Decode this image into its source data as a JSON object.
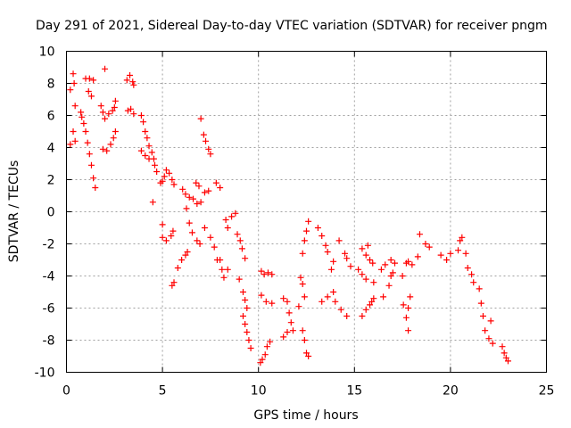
{
  "chart_data": {
    "type": "scatter",
    "title": "Day 291 of 2021, Sidereal Day-to-day VTEC variation (SDTVAR) for receiver pngm",
    "xlabel": "GPS time / hours",
    "ylabel": "SDTVAR / TECUs",
    "xlim": [
      0,
      25
    ],
    "ylim": [
      -10,
      10
    ],
    "xticks": [
      "0",
      "5",
      "10",
      "15",
      "20",
      "25"
    ],
    "yticks": [
      "-10",
      "-8",
      "-6",
      "-4",
      "-2",
      "0",
      "2",
      "4",
      "6",
      "8",
      "10"
    ],
    "grid": true,
    "marker": "plus",
    "color": "#ff0000",
    "series": [
      {
        "name": "SDTVAR",
        "points": [
          [
            0.2,
            7.6
          ],
          [
            0.2,
            4.2
          ],
          [
            0.35,
            8.6
          ],
          [
            0.4,
            8.0
          ],
          [
            0.45,
            6.6
          ],
          [
            0.35,
            5.0
          ],
          [
            0.45,
            4.4
          ],
          [
            0.75,
            6.2
          ],
          [
            0.8,
            5.9
          ],
          [
            0.9,
            5.5
          ],
          [
            1.0,
            5.0
          ],
          [
            1.1,
            4.3
          ],
          [
            1.2,
            3.6
          ],
          [
            1.3,
            2.9
          ],
          [
            1.4,
            2.1
          ],
          [
            1.5,
            1.5
          ],
          [
            1.0,
            8.3
          ],
          [
            1.2,
            8.3
          ],
          [
            1.4,
            8.2
          ],
          [
            1.15,
            7.5
          ],
          [
            1.3,
            7.2
          ],
          [
            1.8,
            6.6
          ],
          [
            1.9,
            6.2
          ],
          [
            2.0,
            5.8
          ],
          [
            2.0,
            8.9
          ],
          [
            2.2,
            6.1
          ],
          [
            2.4,
            6.3
          ],
          [
            2.5,
            6.5
          ],
          [
            2.55,
            6.9
          ],
          [
            1.9,
            3.9
          ],
          [
            2.1,
            3.8
          ],
          [
            2.3,
            4.2
          ],
          [
            2.45,
            4.6
          ],
          [
            2.55,
            5.0
          ],
          [
            3.15,
            8.2
          ],
          [
            3.3,
            8.5
          ],
          [
            3.45,
            8.1
          ],
          [
            3.5,
            7.9
          ],
          [
            3.2,
            6.3
          ],
          [
            3.35,
            6.4
          ],
          [
            3.5,
            6.1
          ],
          [
            3.9,
            6.0
          ],
          [
            4.0,
            5.6
          ],
          [
            4.1,
            5.0
          ],
          [
            4.2,
            4.6
          ],
          [
            4.3,
            4.1
          ],
          [
            4.45,
            3.7
          ],
          [
            4.55,
            3.3
          ],
          [
            4.6,
            2.9
          ],
          [
            4.7,
            2.5
          ],
          [
            4.9,
            1.8
          ],
          [
            3.9,
            3.8
          ],
          [
            4.1,
            3.5
          ],
          [
            4.3,
            3.3
          ],
          [
            4.5,
            0.6
          ],
          [
            5.0,
            1.9
          ],
          [
            5.1,
            2.2
          ],
          [
            5.2,
            2.6
          ],
          [
            5.35,
            2.4
          ],
          [
            5.5,
            2.0
          ],
          [
            5.6,
            1.7
          ],
          [
            5.0,
            -1.6
          ],
          [
            5.2,
            -1.8
          ],
          [
            5.45,
            -1.5
          ],
          [
            5.55,
            -1.2
          ],
          [
            5.0,
            -0.8
          ],
          [
            5.5,
            -4.6
          ],
          [
            5.6,
            -4.4
          ],
          [
            5.8,
            -3.5
          ],
          [
            6.0,
            -3.0
          ],
          [
            6.2,
            -2.7
          ],
          [
            6.3,
            -2.5
          ],
          [
            6.05,
            1.4
          ],
          [
            6.2,
            1.1
          ],
          [
            6.4,
            0.9
          ],
          [
            6.6,
            0.8
          ],
          [
            6.8,
            0.5
          ],
          [
            6.9,
            1.6
          ],
          [
            6.75,
            1.8
          ],
          [
            6.25,
            0.2
          ],
          [
            6.4,
            -0.7
          ],
          [
            6.55,
            -1.3
          ],
          [
            6.8,
            -1.8
          ],
          [
            6.95,
            -2.0
          ],
          [
            7.0,
            5.8
          ],
          [
            7.15,
            4.8
          ],
          [
            7.25,
            4.4
          ],
          [
            7.4,
            3.9
          ],
          [
            7.5,
            3.6
          ],
          [
            7.0,
            0.6
          ],
          [
            7.2,
            1.2
          ],
          [
            7.4,
            1.3
          ],
          [
            7.2,
            -1.0
          ],
          [
            7.5,
            -1.6
          ],
          [
            7.7,
            -2.2
          ],
          [
            7.85,
            -3.0
          ],
          [
            7.8,
            1.8
          ],
          [
            8.0,
            1.5
          ],
          [
            8.0,
            -3.0
          ],
          [
            8.1,
            -3.6
          ],
          [
            8.2,
            -4.1
          ],
          [
            8.4,
            -3.6
          ],
          [
            8.3,
            -0.5
          ],
          [
            8.6,
            -0.3
          ],
          [
            8.8,
            -0.1
          ],
          [
            8.4,
            -1.0
          ],
          [
            8.9,
            -1.4
          ],
          [
            9.05,
            -1.8
          ],
          [
            9.15,
            -2.3
          ],
          [
            9.3,
            -2.9
          ],
          [
            9.0,
            -4.2
          ],
          [
            9.2,
            -5.0
          ],
          [
            9.3,
            -5.5
          ],
          [
            9.4,
            -6.0
          ],
          [
            9.2,
            -6.5
          ],
          [
            9.3,
            -7.0
          ],
          [
            9.4,
            -7.5
          ],
          [
            9.5,
            -8.0
          ],
          [
            9.6,
            -8.5
          ],
          [
            10.1,
            -9.4
          ],
          [
            10.2,
            -9.2
          ],
          [
            10.35,
            -8.9
          ],
          [
            10.45,
            -8.4
          ],
          [
            10.6,
            -8.1
          ],
          [
            10.15,
            -3.7
          ],
          [
            10.3,
            -3.9
          ],
          [
            10.5,
            -3.8
          ],
          [
            10.7,
            -3.9
          ],
          [
            10.15,
            -5.2
          ],
          [
            10.4,
            -5.6
          ],
          [
            10.7,
            -5.7
          ],
          [
            11.3,
            -5.4
          ],
          [
            11.5,
            -5.6
          ],
          [
            11.6,
            -6.3
          ],
          [
            11.7,
            -6.9
          ],
          [
            11.8,
            -7.4
          ],
          [
            11.3,
            -7.8
          ],
          [
            11.5,
            -7.5
          ],
          [
            12.1,
            -5.9
          ],
          [
            12.3,
            -7.4
          ],
          [
            12.4,
            -8.0
          ],
          [
            12.5,
            -8.8
          ],
          [
            12.6,
            -9.0
          ],
          [
            12.3,
            -2.6
          ],
          [
            12.4,
            -1.8
          ],
          [
            12.5,
            -1.2
          ],
          [
            12.6,
            -0.6
          ],
          [
            12.2,
            -4.1
          ],
          [
            12.3,
            -4.5
          ],
          [
            12.4,
            -5.3
          ],
          [
            13.1,
            -1.0
          ],
          [
            13.3,
            -1.5
          ],
          [
            13.5,
            -2.1
          ],
          [
            13.6,
            -2.5
          ],
          [
            13.3,
            -5.6
          ],
          [
            13.6,
            -5.3
          ],
          [
            13.9,
            -5.0
          ],
          [
            13.8,
            -3.6
          ],
          [
            13.9,
            -3.1
          ],
          [
            14.2,
            -1.8
          ],
          [
            14.5,
            -2.6
          ],
          [
            14.6,
            -2.9
          ],
          [
            14.8,
            -3.4
          ],
          [
            14.0,
            -5.6
          ],
          [
            14.3,
            -6.1
          ],
          [
            14.6,
            -6.5
          ],
          [
            15.4,
            -2.3
          ],
          [
            15.6,
            -2.7
          ],
          [
            15.7,
            -2.1
          ],
          [
            15.8,
            -3.0
          ],
          [
            15.95,
            -3.2
          ],
          [
            15.2,
            -3.6
          ],
          [
            15.4,
            -3.9
          ],
          [
            15.4,
            -6.5
          ],
          [
            15.6,
            -6.1
          ],
          [
            15.8,
            -5.8
          ],
          [
            15.9,
            -5.6
          ],
          [
            16.0,
            -5.4
          ],
          [
            15.6,
            -4.2
          ],
          [
            16.0,
            -4.4
          ],
          [
            16.4,
            -3.6
          ],
          [
            16.5,
            -5.3
          ],
          [
            16.8,
            -4.6
          ],
          [
            16.9,
            -4.0
          ],
          [
            17.0,
            -3.8
          ],
          [
            16.6,
            -3.3
          ],
          [
            16.9,
            -3.0
          ],
          [
            17.1,
            -3.2
          ],
          [
            17.5,
            -4.0
          ],
          [
            17.7,
            -3.2
          ],
          [
            17.8,
            -3.1
          ],
          [
            18.0,
            -3.3
          ],
          [
            18.3,
            -2.8
          ],
          [
            17.55,
            -5.8
          ],
          [
            17.7,
            -6.6
          ],
          [
            17.8,
            -7.4
          ],
          [
            17.8,
            -6.0
          ],
          [
            17.9,
            -5.3
          ],
          [
            18.4,
            -1.4
          ],
          [
            18.7,
            -2.0
          ],
          [
            18.9,
            -2.2
          ],
          [
            19.5,
            -2.7
          ],
          [
            19.8,
            -3.0
          ],
          [
            20.0,
            -2.6
          ],
          [
            20.4,
            -2.4
          ],
          [
            20.5,
            -1.8
          ],
          [
            20.6,
            -1.6
          ],
          [
            20.8,
            -2.6
          ],
          [
            20.9,
            -3.5
          ],
          [
            21.1,
            -3.9
          ],
          [
            21.2,
            -4.4
          ],
          [
            21.5,
            -4.8
          ],
          [
            21.6,
            -5.7
          ],
          [
            21.7,
            -6.5
          ],
          [
            21.8,
            -7.4
          ],
          [
            22.0,
            -7.9
          ],
          [
            22.2,
            -8.2
          ],
          [
            22.1,
            -6.8
          ],
          [
            22.7,
            -8.4
          ],
          [
            22.8,
            -8.8
          ],
          [
            22.9,
            -9.1
          ],
          [
            23.0,
            -9.3
          ]
        ]
      }
    ]
  }
}
